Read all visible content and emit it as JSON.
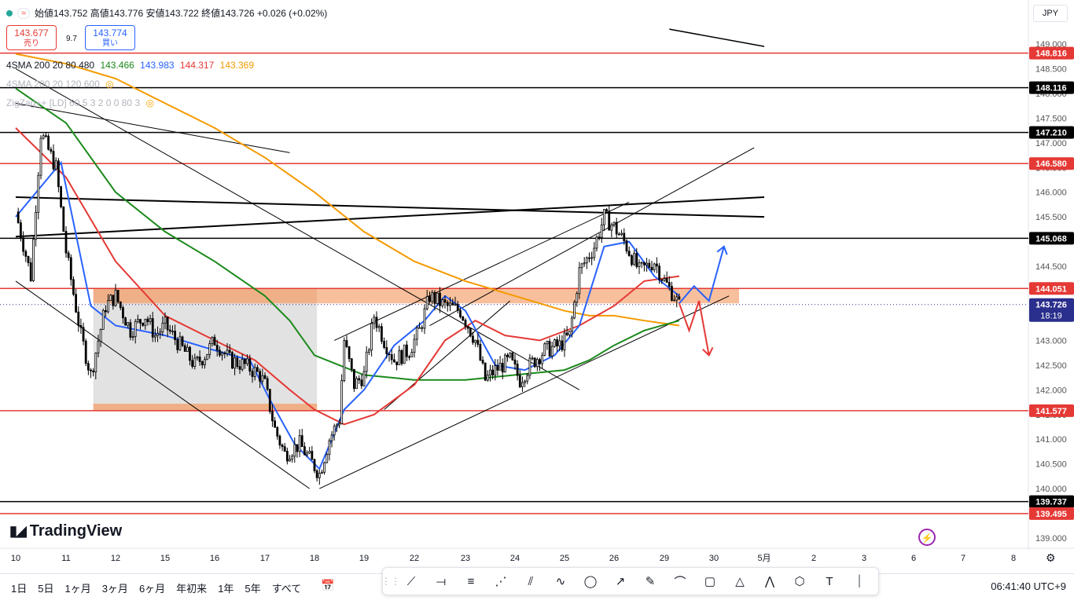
{
  "header": {
    "ohlc": "始値143.752  高値143.776  安値143.722  終値143.726  +0.026 (+0.02%)",
    "currency": "JPY",
    "sell_price": "143.677",
    "sell_label": "売り",
    "spread": "9.7",
    "buy_price": "143.774",
    "buy_label": "買い"
  },
  "indicators": {
    "sma1_name": "4SMA 200 20 80 480",
    "sma1_values": [
      "143.466",
      "143.983",
      "144.317",
      "143.369"
    ],
    "sma1_colors": [
      "#1b8a1b",
      "#2962ff",
      "#e53935",
      "#f59a00"
    ],
    "sma2_name": "4SMA 200 20 120 600",
    "zigzag_name": "ZigZag++ [LD] 60 5 3 2 0 0 80 3"
  },
  "toolbar": {
    "ranges": [
      "1日",
      "5日",
      "1ヶ月",
      "3ヶ月",
      "6ヶ月",
      "年初来",
      "1年",
      "5年",
      "すべて"
    ],
    "clock": "06:41:40 UTC+9",
    "logo": "TradingView"
  },
  "chart_data": {
    "type": "candlestick",
    "ylim": [
      139.0,
      149.0
    ],
    "y_ticks": [
      "149.000",
      "148.500",
      "148.000",
      "147.500",
      "147.000",
      "146.500",
      "146.000",
      "145.500",
      "145.000",
      "144.500",
      "144.000",
      "143.500",
      "143.000",
      "142.500",
      "142.000",
      "141.500",
      "141.000",
      "140.500",
      "140.000",
      "139.500",
      "139.000"
    ],
    "x_ticks": [
      "10",
      "11",
      "12",
      "15",
      "16",
      "17",
      "18",
      "19",
      "22",
      "23",
      "24",
      "25",
      "26",
      "29",
      "30",
      "5月",
      "2",
      "3",
      "6",
      "7",
      "8"
    ],
    "horizontal_levels": [
      {
        "label": "148.816",
        "value": 148.816,
        "color": "#e53935"
      },
      {
        "label": "148.116",
        "value": 148.116,
        "color": "#000000"
      },
      {
        "label": "147.210",
        "value": 147.21,
        "color": "#000000"
      },
      {
        "label": "146.580",
        "value": 146.58,
        "color": "#e53935"
      },
      {
        "label": "145.068",
        "value": 145.068,
        "color": "#000000"
      },
      {
        "label": "144.051",
        "value": 144.051,
        "color": "#e53935"
      },
      {
        "label": "141.577",
        "value": 141.577,
        "color": "#e53935"
      },
      {
        "label": "139.737",
        "value": 139.737,
        "color": "#000000"
      },
      {
        "label": "139.495",
        "value": 139.495,
        "color": "#e53935"
      }
    ],
    "current_price": {
      "label": "143.726",
      "countdown": "18:19",
      "value": 143.726,
      "color": "#2a2e8c"
    },
    "close_path": [
      [
        0,
        145.6
      ],
      [
        0.3,
        144.3
      ],
      [
        0.5,
        147.2
      ],
      [
        0.8,
        146.5
      ],
      [
        1.0,
        144.8
      ],
      [
        1.3,
        143.1
      ],
      [
        1.5,
        142.3
      ],
      [
        1.8,
        143.7
      ],
      [
        2.0,
        143.9
      ],
      [
        2.3,
        143.2
      ],
      [
        2.6,
        143.5
      ],
      [
        2.8,
        143.1
      ],
      [
        3.0,
        143.3
      ],
      [
        3.3,
        142.9
      ],
      [
        3.6,
        142.5
      ],
      [
        3.8,
        142.7
      ],
      [
        4.0,
        143.0
      ],
      [
        4.3,
        142.6
      ],
      [
        4.6,
        142.5
      ],
      [
        4.9,
        142.3
      ],
      [
        5.0,
        142.1
      ],
      [
        5.2,
        141.2
      ],
      [
        5.4,
        140.7
      ],
      [
        5.7,
        140.9
      ],
      [
        5.9,
        140.6
      ],
      [
        6.1,
        140.3
      ],
      [
        6.3,
        141.0
      ],
      [
        6.5,
        141.4
      ],
      [
        6.6,
        143.0
      ],
      [
        6.8,
        142.1
      ],
      [
        7.0,
        142.3
      ],
      [
        7.2,
        143.5
      ],
      [
        7.4,
        143.0
      ],
      [
        7.6,
        142.6
      ],
      [
        7.9,
        142.8
      ],
      [
        8.1,
        143.2
      ],
      [
        8.3,
        143.9
      ],
      [
        8.6,
        143.7
      ],
      [
        8.9,
        143.6
      ],
      [
        9.2,
        143.0
      ],
      [
        9.4,
        142.2
      ],
      [
        9.6,
        142.4
      ],
      [
        9.9,
        142.6
      ],
      [
        10.1,
        142.2
      ],
      [
        10.3,
        142.5
      ],
      [
        10.6,
        142.8
      ],
      [
        10.9,
        142.9
      ],
      [
        11.1,
        143.1
      ],
      [
        11.3,
        144.4
      ],
      [
        11.6,
        144.9
      ],
      [
        11.8,
        145.5
      ],
      [
        12.0,
        145.3
      ],
      [
        12.2,
        145.0
      ],
      [
        12.5,
        144.4
      ],
      [
        12.8,
        144.6
      ],
      [
        13.0,
        144.2
      ],
      [
        13.2,
        143.9
      ],
      [
        13.3,
        143.7
      ]
    ],
    "sma_20_path": [
      [
        0,
        145.5
      ],
      [
        0.9,
        146.6
      ],
      [
        1.5,
        143.7
      ],
      [
        2.0,
        143.3
      ],
      [
        3.0,
        143.1
      ],
      [
        4.0,
        142.8
      ],
      [
        4.7,
        142.6
      ],
      [
        5.1,
        141.8
      ],
      [
        5.6,
        140.9
      ],
      [
        6.1,
        140.4
      ],
      [
        6.6,
        141.6
      ],
      [
        7.0,
        142.0
      ],
      [
        7.6,
        142.9
      ],
      [
        8.2,
        143.4
      ],
      [
        8.6,
        143.9
      ],
      [
        9.0,
        143.6
      ],
      [
        9.6,
        142.5
      ],
      [
        10.2,
        142.4
      ],
      [
        10.8,
        142.7
      ],
      [
        11.3,
        143.3
      ],
      [
        11.8,
        144.9
      ],
      [
        12.3,
        145.0
      ],
      [
        12.8,
        144.3
      ],
      [
        13.3,
        143.9
      ]
    ],
    "sma_80_path": [
      [
        0,
        147.3
      ],
      [
        1.0,
        146.3
      ],
      [
        2.0,
        144.6
      ],
      [
        3.0,
        143.5
      ],
      [
        4.0,
        143.0
      ],
      [
        4.8,
        142.6
      ],
      [
        5.5,
        142.0
      ],
      [
        6.0,
        141.6
      ],
      [
        6.6,
        141.3
      ],
      [
        7.2,
        141.5
      ],
      [
        8.0,
        142.1
      ],
      [
        8.6,
        143.0
      ],
      [
        9.2,
        143.4
      ],
      [
        9.8,
        143.1
      ],
      [
        10.5,
        143.0
      ],
      [
        11.3,
        143.3
      ],
      [
        12.0,
        143.7
      ],
      [
        12.6,
        144.2
      ],
      [
        13.3,
        144.3
      ]
    ],
    "sma_200_path": [
      [
        0,
        148.1
      ],
      [
        1.0,
        147.4
      ],
      [
        2.0,
        146.0
      ],
      [
        3.0,
        145.2
      ],
      [
        4.0,
        144.6
      ],
      [
        5.0,
        143.9
      ],
      [
        5.5,
        143.4
      ],
      [
        6.0,
        142.7
      ],
      [
        6.5,
        142.5
      ],
      [
        7.0,
        142.3
      ],
      [
        8.0,
        142.2
      ],
      [
        9.0,
        142.2
      ],
      [
        10.0,
        142.3
      ],
      [
        11.0,
        142.4
      ],
      [
        11.5,
        142.6
      ],
      [
        12.0,
        142.9
      ],
      [
        12.6,
        143.2
      ],
      [
        13.3,
        143.4
      ]
    ],
    "sma_480_path": [
      [
        0,
        148.8
      ],
      [
        1.0,
        148.6
      ],
      [
        2.0,
        148.3
      ],
      [
        3.0,
        147.8
      ],
      [
        4.0,
        147.3
      ],
      [
        5.0,
        146.7
      ],
      [
        6.0,
        146.0
      ],
      [
        7.0,
        145.2
      ],
      [
        8.0,
        144.6
      ],
      [
        9.0,
        144.2
      ],
      [
        10.0,
        143.9
      ],
      [
        11.0,
        143.6
      ],
      [
        11.5,
        143.5
      ],
      [
        12.0,
        143.5
      ],
      [
        12.6,
        143.4
      ],
      [
        13.3,
        143.3
      ]
    ],
    "forecast_blue": [
      [
        13.3,
        143.75
      ],
      [
        13.6,
        144.1
      ],
      [
        13.9,
        143.8
      ],
      [
        14.2,
        144.9
      ]
    ],
    "forecast_red": [
      [
        13.3,
        143.75
      ],
      [
        13.5,
        143.2
      ],
      [
        13.7,
        143.8
      ],
      [
        13.9,
        142.7
      ]
    ],
    "rectangles": [
      {
        "x0": 1.55,
        "x1": 6.05,
        "y0": 141.577,
        "y1": 144.051,
        "fill": "rgba(190,190,190,0.45)"
      },
      {
        "x0": 1.55,
        "x1": 6.05,
        "y0": 143.75,
        "y1": 144.051,
        "fill": "rgba(244,164,112,0.8)"
      },
      {
        "x0": 1.55,
        "x1": 6.05,
        "y0": 141.577,
        "y1": 141.72,
        "fill": "rgba(244,164,112,0.8)"
      },
      {
        "x0": 6.05,
        "x1": 14.5,
        "y0": 143.75,
        "y1": 144.051,
        "fill": "rgba(244,164,112,0.7)"
      }
    ],
    "trendlines": [
      {
        "p1": [
          0,
          145.9
        ],
        "p2": [
          15,
          145.5
        ],
        "width": 2
      },
      {
        "p1": [
          0,
          145.1
        ],
        "p2": [
          15,
          145.9
        ],
        "width": 2
      },
      {
        "p1": [
          0,
          147.8
        ],
        "p2": [
          5.5,
          146.8
        ],
        "width": 1
      },
      {
        "p1": [
          0,
          148.5
        ],
        "p2": [
          11.3,
          142.0
        ],
        "width": 1
      },
      {
        "p1": [
          0,
          144.2
        ],
        "p2": [
          5.9,
          140.0
        ],
        "width": 1
      },
      {
        "p1": [
          6.1,
          140.0
        ],
        "p2": [
          14.3,
          143.9
        ],
        "width": 1
      },
      {
        "p1": [
          6.4,
          143.0
        ],
        "p2": [
          12.3,
          145.8
        ],
        "width": 1
      },
      {
        "p1": [
          7.4,
          141.6
        ],
        "p2": [
          9.9,
          143.8
        ],
        "width": 1
      },
      {
        "p1": [
          8.3,
          143.3
        ],
        "p2": [
          14.8,
          146.9
        ],
        "width": 1
      },
      {
        "p1": [
          13.1,
          149.3
        ],
        "p2": [
          15.0,
          148.95
        ],
        "width": 1.5
      }
    ]
  }
}
